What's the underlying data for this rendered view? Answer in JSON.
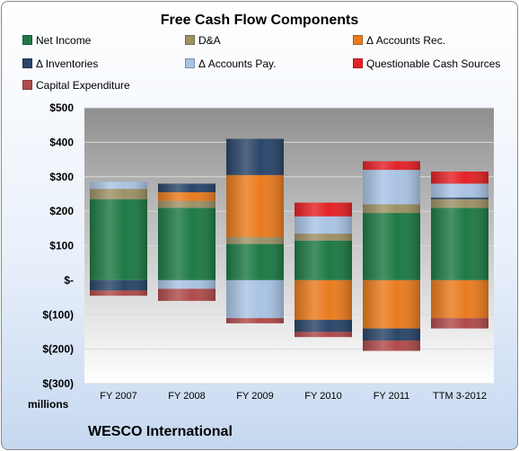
{
  "chart_data": {
    "type": "bar",
    "subtype": "stacked",
    "title": "Free Cash Flow Components",
    "categories": [
      "FY 2007",
      "FY 2008",
      "FY 2009",
      "FY 2010",
      "FY 2011",
      "TTM 3-2012"
    ],
    "ylim": [
      -300,
      500
    ],
    "yticks": [
      -300,
      -200,
      -100,
      0,
      100,
      200,
      300,
      400,
      500
    ],
    "ytick_labels": [
      "$(300)",
      "$(200)",
      "$(100)",
      "$-",
      "$100",
      "$200",
      "$300",
      "$400",
      "$500"
    ],
    "unit_label": "millions",
    "grid": true,
    "legend_position": "top",
    "series": [
      {
        "name": "Net Income",
        "color": "#1e7a45",
        "values": [
          235,
          210,
          105,
          115,
          195,
          210
        ]
      },
      {
        "name": "D&A",
        "color": "#9e9166",
        "values": [
          30,
          20,
          20,
          20,
          25,
          25
        ]
      },
      {
        "name": "Δ Accounts Rec.",
        "color": "#e97b1f",
        "values": [
          0,
          25,
          180,
          -115,
          -140,
          -110
        ]
      },
      {
        "name": "Δ Inventories",
        "color": "#2a4669",
        "values": [
          -30,
          25,
          105,
          -35,
          -35,
          5
        ]
      },
      {
        "name": "Δ Accounts Pay.",
        "color": "#a9c3e4",
        "values": [
          20,
          -25,
          -110,
          50,
          100,
          40
        ]
      },
      {
        "name": "Questionable Cash Sources",
        "color": "#e32227",
        "values": [
          0,
          0,
          0,
          40,
          25,
          35
        ]
      },
      {
        "name": "Capital Expenditure",
        "color": "#b04b4b",
        "values": [
          -15,
          -35,
          -15,
          -15,
          -30,
          -30
        ]
      }
    ]
  },
  "footer": {
    "company": "WESCO International"
  }
}
